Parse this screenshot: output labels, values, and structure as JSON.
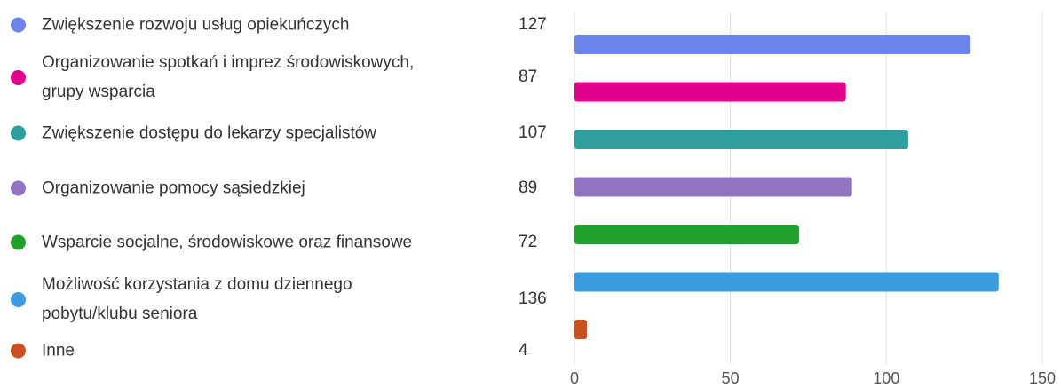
{
  "chart_data": {
    "type": "bar",
    "orientation": "horizontal",
    "categories": [
      "Zwiększenie rozwoju usług opiekuńczych",
      "Organizowanie spotkań i imprez środowiskowych, grupy wsparcia",
      "Zwiększenie dostępu do lekarzy specjalistów",
      "Organizowanie pomocy sąsiedzkiej",
      "Wsparcie socjalne, środowiskowe oraz finansowe",
      "Możliwość korzystania z domu dziennego pobytu/klubu seniora",
      "Inne"
    ],
    "values": [
      127,
      87,
      107,
      89,
      72,
      136,
      4
    ],
    "colors": [
      "#6b83ea",
      "#e3008c",
      "#2f9e9e",
      "#9374c2",
      "#22a02c",
      "#3d9be0",
      "#c9501f"
    ],
    "xlim": [
      0,
      150
    ],
    "xticks": [
      0,
      50,
      100,
      150
    ],
    "grid": true
  }
}
